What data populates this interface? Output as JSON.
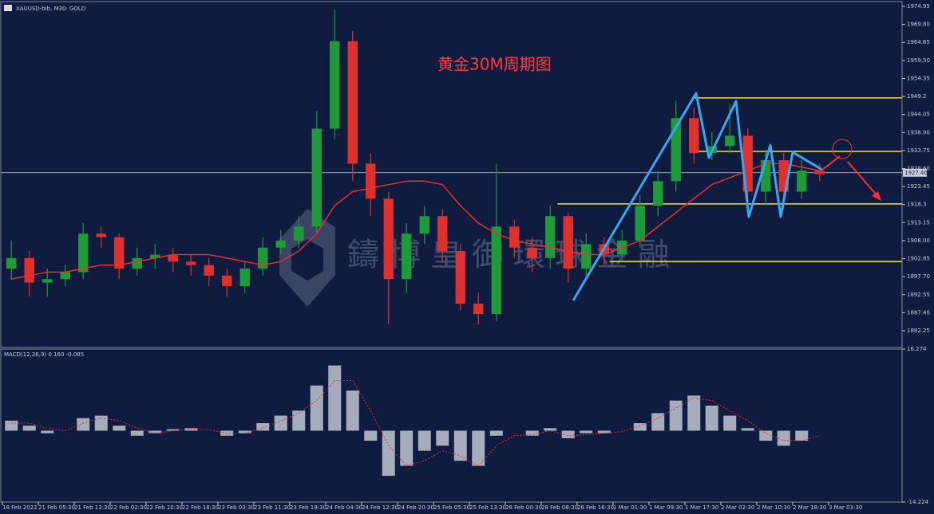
{
  "chart_data": [
    {
      "type": "candlestick",
      "symbol": "XAUUSD-bib, M30: GOLD",
      "title": "黄金30M周期图",
      "watermark": "鑄博皇御環球金融",
      "up_color": "#1f9a3a",
      "down_color": "#e0302e",
      "ma_color": "#e8302e",
      "level_color": "#f0e040",
      "open": [
        1900,
        1903,
        1896,
        1897,
        1899,
        1910,
        1909,
        1900,
        1903,
        1904,
        1902,
        1901,
        1898,
        1895,
        1900,
        1906,
        1908,
        1912,
        1940,
        1965,
        1930,
        1920,
        1897,
        1910,
        1915,
        1905,
        1890,
        1887,
        1912,
        1906,
        1903,
        1915,
        1900,
        1907,
        1904,
        1908,
        1918,
        1925,
        1943,
        1933,
        1935,
        1938,
        1922,
        1931,
        1922,
        1928
      ],
      "high": [
        1908,
        1905,
        1900,
        1901,
        1913,
        1912,
        1910,
        1906,
        1907,
        1906,
        1904,
        1903,
        1900,
        1902,
        1909,
        1911,
        1915,
        1945,
        1974,
        1968,
        1933,
        1922,
        1913,
        1918,
        1917,
        1907,
        1893,
        1930,
        1914,
        1909,
        1918,
        1916,
        1910,
        1909,
        1911,
        1921,
        1928,
        1948,
        1946,
        1939,
        1947,
        1940,
        1934,
        1933,
        1931,
        1930
      ],
      "low": [
        1897,
        1892,
        1892,
        1895,
        1897,
        1906,
        1897,
        1898,
        1900,
        1899,
        1898,
        1895,
        1892,
        1893,
        1898,
        1904,
        1906,
        1910,
        1937,
        1925,
        1915,
        1884,
        1893,
        1907,
        1902,
        1888,
        1884,
        1885,
        1903,
        1899,
        1900,
        1896,
        1897,
        1901,
        1902,
        1906,
        1915,
        1922,
        1930,
        1931,
        1933,
        1916,
        1918,
        1917,
        1920,
        1925
      ],
      "close": [
        1903,
        1896,
        1897,
        1899,
        1910,
        1909,
        1900,
        1903,
        1904,
        1902,
        1901,
        1898,
        1895,
        1900,
        1906,
        1908,
        1912,
        1940,
        1965,
        1930,
        1920,
        1897,
        1910,
        1915,
        1905,
        1890,
        1887,
        1912,
        1906,
        1903,
        1915,
        1900,
        1907,
        1904,
        1908,
        1918,
        1925,
        1943,
        1933,
        1935,
        1938,
        1922,
        1931,
        1922,
        1928,
        1927
      ],
      "ma": [
        1897,
        1898,
        1899,
        1899,
        1900,
        1901,
        1901,
        1902,
        1903,
        1904,
        1904,
        1904,
        1903,
        1902,
        1901,
        1902,
        1905,
        1910,
        1918,
        1922,
        1923,
        1924,
        1925,
        1925,
        1924,
        1918,
        1913,
        1910,
        1908,
        1907,
        1906,
        1905,
        1904,
        1904,
        1906,
        1908,
        1912,
        1916,
        1920,
        1924,
        1926,
        1928,
        1930,
        1930,
        1929,
        1928
      ],
      "levels": [
        1948.8,
        1933.5,
        1918.5,
        1902.0
      ],
      "level_starts": [
        38.4,
        38.4,
        30.9,
        33.8
      ],
      "price_line": {
        "value": 1927.4,
        "label": "1927.40"
      },
      "xlim": [
        0,
        50
      ],
      "xticks": [
        {
          "value": 0,
          "label": "18 Feb 2022"
        },
        {
          "value": 2,
          "label": "21 Feb 05:30"
        },
        {
          "value": 4,
          "label": "21 Feb 13:30"
        },
        {
          "value": 6,
          "label": "22 Feb 02:30"
        },
        {
          "value": 8,
          "label": "22 Feb 10:30"
        },
        {
          "value": 10,
          "label": "22 Feb 18:30"
        },
        {
          "value": 12,
          "label": "23 Feb 03:30"
        },
        {
          "value": 14,
          "label": "23 Feb 11:30"
        },
        {
          "value": 16,
          "label": "23 Feb 19:30"
        },
        {
          "value": 18,
          "label": "24 Feb 04:30"
        },
        {
          "value": 20,
          "label": "24 Feb 12:30"
        },
        {
          "value": 22,
          "label": "24 Feb 20:30"
        },
        {
          "value": 24,
          "label": "25 Feb 05:30"
        },
        {
          "value": 26,
          "label": "25 Feb 13:30"
        },
        {
          "value": 28,
          "label": "28 Feb 00:30"
        },
        {
          "value": 30,
          "label": "28 Feb 08:30"
        },
        {
          "value": 32,
          "label": "28 Feb 16:30"
        },
        {
          "value": 34,
          "label": "1 Mar 01:30"
        },
        {
          "value": 36,
          "label": "1 Mar 09:30"
        },
        {
          "value": 38,
          "label": "1 Mar 17:30"
        },
        {
          "value": 40,
          "label": "2 Mar 02:30"
        },
        {
          "value": 42,
          "label": "2 Mar 10:30"
        },
        {
          "value": 44,
          "label": "2 Mar 18:30"
        },
        {
          "value": 46,
          "label": "3 Mar 03:30"
        }
      ],
      "ylim": [
        1877.46,
        1976.32
      ],
      "yticks": [
        1974.95,
        {
          "value": 1969.8,
          "label": "1969.80"
        },
        1964.65,
        {
          "value": 1959.5,
          "label": "1959.50"
        },
        1954.35,
        1949.2,
        1944.05,
        {
          "value": 1938.9,
          "label": "1938.90"
        },
        1933.75,
        {
          "value": 1928.6,
          "label": "1928.60"
        },
        1923.45,
        1918.3,
        1913.15,
        {
          "value": 1908,
          "label": "1908.00"
        },
        1902.85,
        {
          "value": 1897.7,
          "label": "1897.70"
        },
        1892.55,
        {
          "value": 1887.4,
          "label": "1887.40"
        },
        1882.25
      ]
    },
    {
      "type": "macd",
      "label": "MACD(12,26,9) 0.160 -0.085",
      "bar_color": "#d8dce6",
      "signal_color": "#e8302e",
      "xlim": [
        0,
        50
      ],
      "ylim": [
        -14.224,
        16.274
      ],
      "yticks": [
        16.274,
        -14.224
      ],
      "histogram": [
        2,
        1,
        -0.5,
        0,
        2.5,
        3,
        1,
        -1,
        -0.5,
        0.3,
        0.5,
        0,
        -1,
        -0.5,
        1.5,
        3,
        4,
        9,
        13,
        8,
        -2,
        -9,
        -7,
        -4,
        -3,
        -6,
        -7,
        -1,
        0,
        -1,
        0.5,
        -1.5,
        -0.5,
        -0.5,
        0,
        1.5,
        3.5,
        6,
        7,
        5,
        3,
        0.5,
        -2,
        -3,
        -2,
        0
      ],
      "signal": [
        1.5,
        1.5,
        0.5,
        0,
        1.5,
        2.5,
        2,
        0.5,
        -0.5,
        0,
        0.3,
        0.2,
        -0.5,
        -0.5,
        0.5,
        2,
        3.5,
        6,
        10,
        10,
        4,
        -3,
        -7,
        -6,
        -4,
        -5,
        -7,
        -3,
        -1,
        -0.8,
        0,
        -1,
        -0.8,
        -0.5,
        -0.2,
        1,
        2.5,
        4.5,
        6.5,
        6,
        4,
        2,
        -0.5,
        -2,
        -2,
        -1
      ]
    }
  ]
}
